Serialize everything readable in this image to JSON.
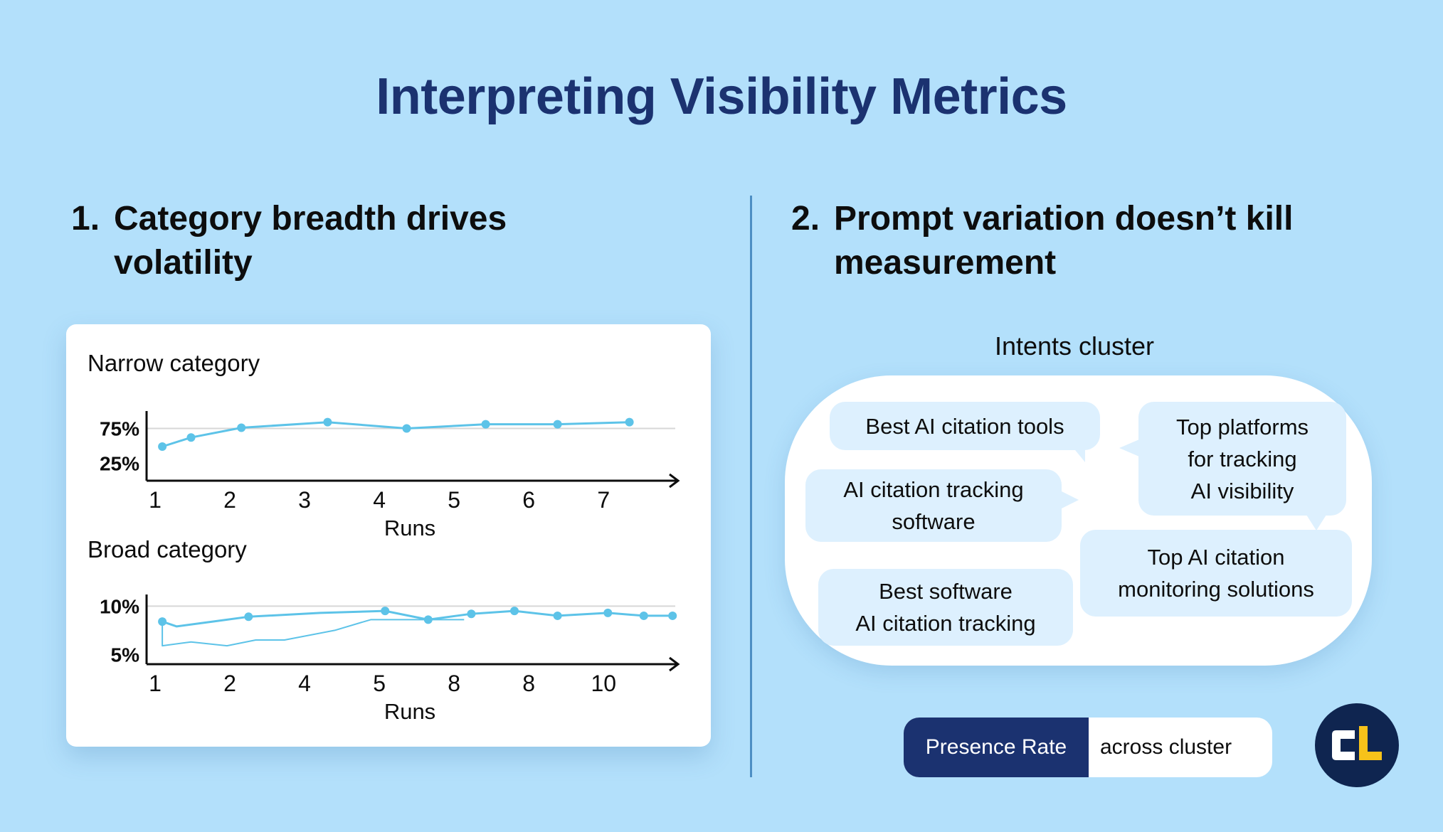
{
  "title": "Interpreting Visibility Metrics",
  "left_section": {
    "number": "1.",
    "line1": "Category breadth drives",
    "line2": "volatility"
  },
  "right_section": {
    "number": "2.",
    "line1": "Prompt variation doesn’t kill",
    "line2": "measurement"
  },
  "chart_data": [
    {
      "type": "line",
      "title": "Narrow  category",
      "xlabel": "Runs",
      "ylabel": "",
      "ytick_labels": [
        "75%",
        "25%"
      ],
      "ytick_values": [
        75,
        25
      ],
      "categories": [
        "1",
        "2",
        "3",
        "4",
        "5",
        "6",
        "7"
      ],
      "series": [
        {
          "name": "Narrow category",
          "x": [
            1.1,
            1.5,
            2.2,
            3.4,
            4.5,
            5.6,
            6.6,
            7.6
          ],
          "y": [
            49,
            62,
            76,
            84,
            75,
            81,
            81,
            84
          ]
        }
      ],
      "ylim": [
        0,
        100
      ],
      "colors": {
        "line": "#5dc3e8",
        "axis": "#0d0d0d",
        "grid": "#d7d7d7"
      }
    },
    {
      "type": "line",
      "title": "Broad category",
      "xlabel": "Runs",
      "ylabel": "",
      "ytick_labels": [
        "10%",
        "5%"
      ],
      "ytick_values": [
        10,
        5
      ],
      "categories": [
        "1",
        "2",
        "4",
        "5",
        "8",
        "8",
        "10"
      ],
      "series": [
        {
          "name": "Broad category (main)",
          "x": [
            1.1,
            1.3,
            1.8,
            2.3,
            3.3,
            4.2,
            4.8,
            5.4,
            6.0,
            6.6,
            7.3,
            7.8,
            8.2
          ],
          "y": [
            8.4,
            7.9,
            8.4,
            8.9,
            9.3,
            9.5,
            8.6,
            9.2,
            9.5,
            9.0,
            9.3,
            9.0,
            9.0
          ]
        },
        {
          "name": "Broad category (thin)",
          "x": [
            1.1,
            1.1,
            1.5,
            2.0,
            2.4,
            2.8,
            3.5,
            4.0,
            4.7,
            5.3
          ],
          "y": [
            8.4,
            5.9,
            6.3,
            5.9,
            6.5,
            6.5,
            7.5,
            8.6,
            8.6,
            8.6
          ]
        }
      ],
      "ylim": [
        4,
        11.2
      ],
      "colors": {
        "line": "#5dc3e8",
        "axis": "#0d0d0d",
        "grid": "#d7d7d7"
      }
    }
  ],
  "cluster": {
    "title": "Intents cluster",
    "bubbles": [
      {
        "lines": [
          "Best AI citation tools"
        ]
      },
      {
        "lines": [
          "Top platforms",
          "for tracking",
          "AI visibility"
        ]
      },
      {
        "lines": [
          "AI citation tracking",
          "software"
        ]
      },
      {
        "lines": [
          "Top AI citation",
          "monitoring solutions"
        ]
      },
      {
        "lines": [
          "Best software",
          "AI citation tracking"
        ]
      }
    ]
  },
  "presence": {
    "label": "Presence Rate",
    "suffix": "across cluster"
  },
  "colors": {
    "background": "#b3e0fb",
    "title": "#1b3270",
    "accent": "#5dc3e8",
    "logo_bg": "#0f2550",
    "logo_yellow": "#f7c21a"
  },
  "logo": {
    "text": "CL"
  }
}
